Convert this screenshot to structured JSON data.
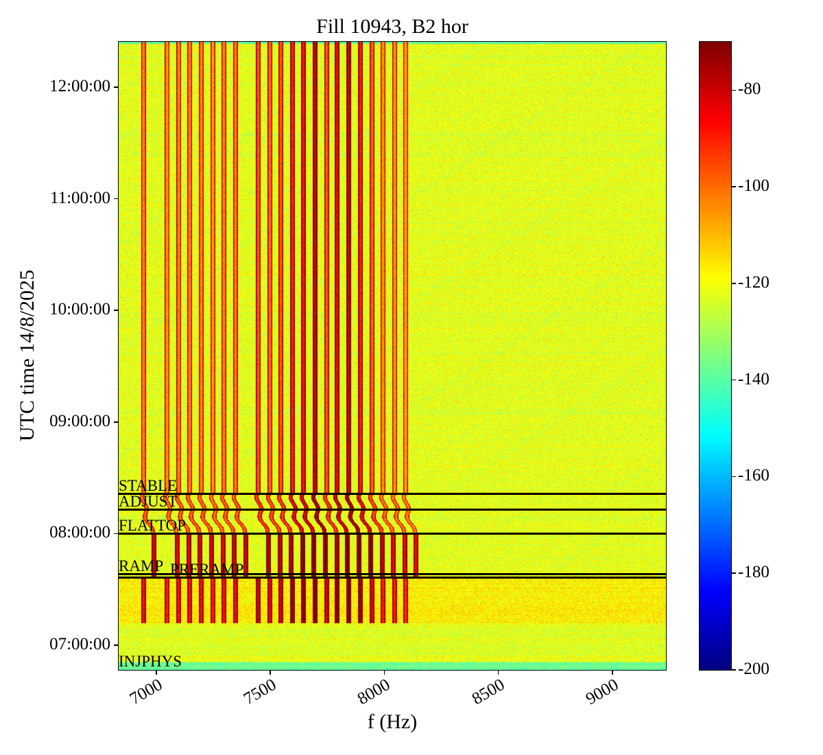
{
  "chart_data": {
    "type": "heatmap",
    "title": "Fill 10943, B2 hor",
    "xlabel": "f (Hz)",
    "ylabel": "UTC time 14/8/2025",
    "xlim": [
      6835,
      9235
    ],
    "ylim": [
      "06:46:43",
      "12:24:20"
    ],
    "xticks": [
      7000,
      7500,
      8000,
      8500,
      9000
    ],
    "yticks": [
      "07:00:00",
      "08:00:00",
      "09:00:00",
      "10:00:00",
      "11:00:00",
      "12:00:00"
    ],
    "colormap": "jet",
    "colorbar": {
      "range": [
        -200,
        -70
      ],
      "ticks": [
        -200,
        -180,
        -160,
        -140,
        -120,
        -100,
        -80
      ]
    },
    "noise_floor_db": -122,
    "spectral_lines": [
      {
        "f": 6943,
        "db": -106
      },
      {
        "f": 7046,
        "db": -108
      },
      {
        "f": 7097,
        "db": -106
      },
      {
        "f": 7145,
        "db": -106
      },
      {
        "f": 7196,
        "db": -106
      },
      {
        "f": 7247,
        "db": -108
      },
      {
        "f": 7295,
        "db": -106
      },
      {
        "f": 7346,
        "db": -105
      },
      {
        "f": 7446,
        "db": -100
      },
      {
        "f": 7497,
        "db": -103
      },
      {
        "f": 7545,
        "db": -100
      },
      {
        "f": 7596,
        "db": -92
      },
      {
        "f": 7644,
        "db": -90
      },
      {
        "f": 7695,
        "db": -82
      },
      {
        "f": 7746,
        "db": -100
      },
      {
        "f": 7791,
        "db": -88
      },
      {
        "f": 7843,
        "db": -82
      },
      {
        "f": 7894,
        "db": -92
      },
      {
        "f": 7945,
        "db": -102
      },
      {
        "f": 7993,
        "db": -108
      },
      {
        "f": 8044,
        "db": -108
      },
      {
        "f": 8092,
        "db": -110
      }
    ],
    "beam_modes": [
      {
        "label": "STABLE",
        "time": "08:21:24"
      },
      {
        "label": "ADJUST",
        "time": "08:12:55"
      },
      {
        "label": "FLATTOP",
        "time": "08:00:00"
      },
      {
        "label": "RAMP",
        "time": "07:38:14"
      },
      {
        "label": "PRERAMP",
        "time": "07:36:22"
      },
      {
        "label": "INJPHYS",
        "time": "06:47:00"
      }
    ]
  }
}
